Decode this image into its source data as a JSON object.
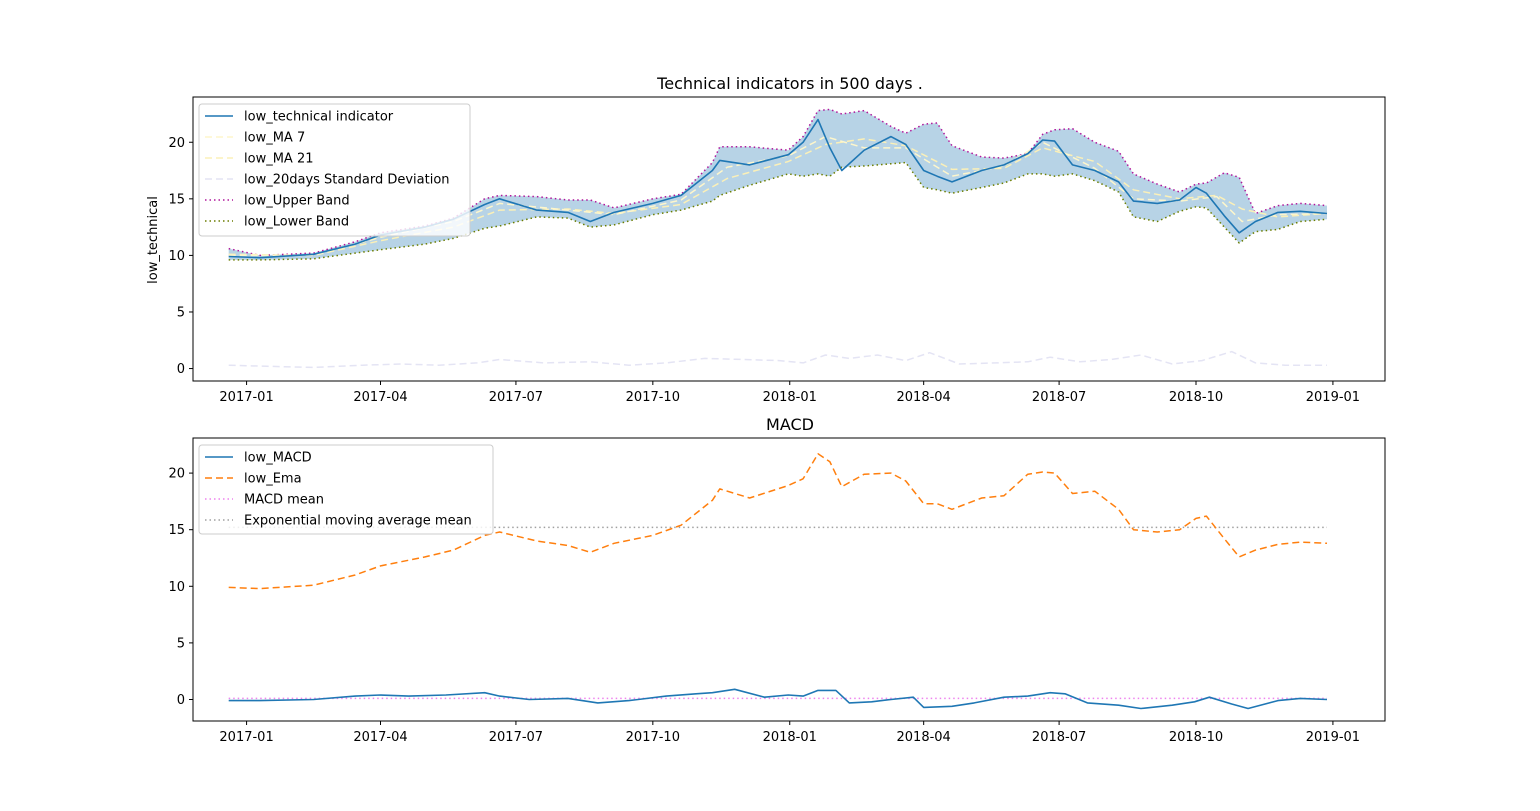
{
  "colors": {
    "indicator": "#1f77b4",
    "ma7": "#fdf6cc",
    "ma21": "#fbf0b8",
    "std": "#e4e4f4",
    "upper": "#b0179b",
    "lower": "#6b7d00",
    "band_fill": "#b7d3e6",
    "ema": "#ff7f0e",
    "macd_mean": "#ee82ee",
    "ema_mean": "#a0a0a0"
  },
  "chart_data": [
    {
      "type": "line",
      "title": "Technical indicators in 500 days .",
      "xlabel": "",
      "ylabel": "low_technical",
      "x_tick_labels": [
        "2017-01",
        "2017-04",
        "2017-07",
        "2017-10",
        "2018-01",
        "2018-04",
        "2018-07",
        "2018-10",
        "2019-01"
      ],
      "x_ticks_dates": [
        "2017-01-01",
        "2017-04-01",
        "2017-07-01",
        "2017-10-01",
        "2018-01-01",
        "2018-04-01",
        "2018-07-01",
        "2018-10-01",
        "2019-01-01"
      ],
      "xlim": [
        "2016-11-26",
        "2019-02-05"
      ],
      "ylim": [
        -1.1,
        24.0
      ],
      "y_ticks": [
        0,
        5,
        10,
        15,
        20
      ],
      "grid": false,
      "legend_position": "upper-left",
      "series": [
        {
          "name": "low_technical indicator",
          "style": "solid",
          "color": "#1f77b4",
          "x": [
            "2016-12-20",
            "2017-01-10",
            "2017-02-15",
            "2017-03-15",
            "2017-04-01",
            "2017-05-01",
            "2017-05-20",
            "2017-06-10",
            "2017-06-20",
            "2017-07-15",
            "2017-08-05",
            "2017-08-20",
            "2017-09-05",
            "2017-10-01",
            "2017-10-20",
            "2017-11-10",
            "2017-11-15",
            "2017-12-05",
            "2017-12-31",
            "2018-01-10",
            "2018-01-20",
            "2018-01-28",
            "2018-02-05",
            "2018-02-20",
            "2018-03-10",
            "2018-03-20",
            "2018-04-01",
            "2018-04-10",
            "2018-04-20",
            "2018-05-10",
            "2018-05-25",
            "2018-06-10",
            "2018-06-20",
            "2018-06-28",
            "2018-07-10",
            "2018-07-25",
            "2018-08-10",
            "2018-08-20",
            "2018-09-05",
            "2018-09-20",
            "2018-10-01",
            "2018-10-08",
            "2018-10-20",
            "2018-10-30",
            "2018-11-10",
            "2018-11-25",
            "2018-12-10",
            "2018-12-28"
          ],
          "y": [
            9.9,
            9.8,
            10.1,
            11.0,
            11.8,
            12.5,
            13.2,
            14.5,
            15.0,
            14.0,
            13.8,
            13.0,
            13.8,
            14.6,
            15.3,
            17.5,
            18.4,
            18.0,
            18.9,
            20.0,
            22.0,
            19.5,
            17.5,
            19.3,
            20.5,
            19.8,
            17.5,
            17.0,
            16.5,
            17.5,
            18.0,
            19.0,
            20.2,
            20.1,
            18.0,
            17.5,
            16.5,
            14.8,
            14.6,
            14.9,
            16.0,
            15.5,
            13.5,
            12.0,
            13.0,
            13.8,
            13.9,
            13.7
          ]
        },
        {
          "name": "low_MA 7",
          "style": "dashed",
          "color": "#fdf6cc",
          "x": [
            "2016-12-20",
            "2017-02-15",
            "2017-04-01",
            "2017-05-20",
            "2017-06-20",
            "2017-08-05",
            "2017-09-05",
            "2017-10-20",
            "2017-11-20",
            "2017-12-31",
            "2018-01-25",
            "2018-02-20",
            "2018-03-20",
            "2018-04-20",
            "2018-05-25",
            "2018-06-20",
            "2018-07-25",
            "2018-08-20",
            "2018-09-20",
            "2018-10-15",
            "2018-11-01",
            "2018-11-25",
            "2018-12-28"
          ],
          "y": [
            10.0,
            10.0,
            11.6,
            13.0,
            14.6,
            14.0,
            13.6,
            14.9,
            17.8,
            18.8,
            20.5,
            19.5,
            19.5,
            17.0,
            17.9,
            20.0,
            17.7,
            15.0,
            14.8,
            15.2,
            13.0,
            13.6,
            13.7
          ]
        },
        {
          "name": "low_MA 21",
          "style": "dashed",
          "color": "#fbf0b8",
          "x": [
            "2016-12-20",
            "2017-02-15",
            "2017-04-01",
            "2017-05-20",
            "2017-06-20",
            "2017-08-05",
            "2017-09-05",
            "2017-10-20",
            "2017-11-20",
            "2017-12-31",
            "2018-01-25",
            "2018-02-20",
            "2018-03-20",
            "2018-04-20",
            "2018-05-25",
            "2018-06-20",
            "2018-07-25",
            "2018-08-20",
            "2018-09-20",
            "2018-10-15",
            "2018-11-01",
            "2018-11-25",
            "2018-12-28"
          ],
          "y": [
            10.1,
            10.0,
            11.3,
            12.5,
            14.0,
            14.1,
            13.7,
            14.5,
            16.8,
            18.3,
            19.8,
            20.3,
            19.7,
            17.6,
            17.7,
            19.5,
            18.3,
            15.8,
            15.0,
            15.3,
            14.1,
            13.4,
            13.7
          ]
        },
        {
          "name": "low_20days Standard Deviation",
          "style": "dashed",
          "color": "#e4e4f4",
          "x": [
            "2016-12-20",
            "2017-01-15",
            "2017-02-15",
            "2017-03-20",
            "2017-04-15",
            "2017-05-10",
            "2017-06-05",
            "2017-06-20",
            "2017-07-20",
            "2017-08-20",
            "2017-09-15",
            "2017-10-10",
            "2017-11-05",
            "2017-12-01",
            "2017-12-25",
            "2018-01-10",
            "2018-01-25",
            "2018-02-10",
            "2018-03-01",
            "2018-03-20",
            "2018-04-05",
            "2018-04-25",
            "2018-05-20",
            "2018-06-10",
            "2018-06-25",
            "2018-07-15",
            "2018-08-05",
            "2018-08-25",
            "2018-09-15",
            "2018-10-05",
            "2018-10-25",
            "2018-11-10",
            "2018-11-30",
            "2018-12-28"
          ],
          "y": [
            0.3,
            0.2,
            0.1,
            0.3,
            0.4,
            0.3,
            0.5,
            0.8,
            0.5,
            0.6,
            0.3,
            0.5,
            0.9,
            0.8,
            0.7,
            0.5,
            1.2,
            0.9,
            1.2,
            0.7,
            1.4,
            0.4,
            0.5,
            0.6,
            1.0,
            0.6,
            0.8,
            1.2,
            0.4,
            0.7,
            1.5,
            0.5,
            0.3,
            0.3
          ]
        },
        {
          "name": "low_Upper Band",
          "style": "dotted",
          "color": "#b0179b",
          "x": [
            "2016-12-20",
            "2017-01-10",
            "2017-02-15",
            "2017-03-15",
            "2017-04-01",
            "2017-05-01",
            "2017-05-20",
            "2017-06-10",
            "2017-06-20",
            "2017-07-15",
            "2017-08-05",
            "2017-08-20",
            "2017-09-05",
            "2017-10-01",
            "2017-10-20",
            "2017-11-10",
            "2017-11-15",
            "2017-12-05",
            "2017-12-31",
            "2018-01-10",
            "2018-01-20",
            "2018-01-28",
            "2018-02-05",
            "2018-02-20",
            "2018-03-10",
            "2018-03-20",
            "2018-04-01",
            "2018-04-10",
            "2018-04-20",
            "2018-05-10",
            "2018-05-25",
            "2018-06-10",
            "2018-06-20",
            "2018-06-28",
            "2018-07-10",
            "2018-07-25",
            "2018-08-10",
            "2018-08-20",
            "2018-09-05",
            "2018-09-20",
            "2018-10-01",
            "2018-10-08",
            "2018-10-20",
            "2018-10-30",
            "2018-11-10",
            "2018-11-25",
            "2018-12-10",
            "2018-12-28"
          ],
          "y": [
            10.6,
            10.0,
            10.2,
            11.2,
            12.0,
            12.6,
            13.3,
            15.0,
            15.3,
            15.2,
            14.9,
            14.9,
            14.2,
            15.0,
            15.4,
            18.2,
            19.6,
            19.6,
            19.3,
            20.5,
            22.8,
            22.9,
            22.5,
            22.8,
            21.4,
            20.8,
            21.6,
            21.7,
            19.7,
            18.7,
            18.6,
            19.0,
            20.7,
            21.1,
            21.2,
            20.0,
            19.2,
            17.2,
            16.3,
            15.6,
            16.3,
            16.4,
            17.3,
            16.9,
            13.7,
            14.4,
            14.6,
            14.4
          ]
        },
        {
          "name": "low_Lower Band",
          "style": "dotted",
          "color": "#6b7d00",
          "x": [
            "2016-12-20",
            "2017-01-10",
            "2017-02-15",
            "2017-03-15",
            "2017-04-01",
            "2017-05-01",
            "2017-05-20",
            "2017-06-10",
            "2017-06-20",
            "2017-07-15",
            "2017-08-05",
            "2017-08-20",
            "2017-09-05",
            "2017-10-01",
            "2017-10-20",
            "2017-11-10",
            "2017-11-15",
            "2017-12-05",
            "2017-12-31",
            "2018-01-10",
            "2018-01-20",
            "2018-01-28",
            "2018-02-05",
            "2018-02-20",
            "2018-03-10",
            "2018-03-20",
            "2018-04-01",
            "2018-04-10",
            "2018-04-20",
            "2018-05-10",
            "2018-05-25",
            "2018-06-10",
            "2018-06-20",
            "2018-06-28",
            "2018-07-10",
            "2018-07-25",
            "2018-08-10",
            "2018-08-20",
            "2018-09-05",
            "2018-09-20",
            "2018-10-01",
            "2018-10-08",
            "2018-10-20",
            "2018-10-30",
            "2018-11-10",
            "2018-11-25",
            "2018-12-10",
            "2018-12-28"
          ],
          "y": [
            9.6,
            9.6,
            9.7,
            10.2,
            10.5,
            11.0,
            11.5,
            12.4,
            12.6,
            13.4,
            13.3,
            12.5,
            12.7,
            13.6,
            14.0,
            14.8,
            15.3,
            16.2,
            17.2,
            17.0,
            17.2,
            17.0,
            17.8,
            17.9,
            18.1,
            18.2,
            16.0,
            15.8,
            15.5,
            16.0,
            16.4,
            17.2,
            17.2,
            17.0,
            17.2,
            16.6,
            15.6,
            13.4,
            13.0,
            13.9,
            14.3,
            14.2,
            12.5,
            11.1,
            12.1,
            12.3,
            13.0,
            13.2
          ]
        }
      ]
    },
    {
      "type": "line",
      "title": "MACD",
      "xlabel": "",
      "ylabel": "",
      "x_tick_labels": [
        "2017-01",
        "2017-04",
        "2017-07",
        "2017-10",
        "2018-01",
        "2018-04",
        "2018-07",
        "2018-10",
        "2019-01"
      ],
      "x_ticks_dates": [
        "2017-01-01",
        "2017-04-01",
        "2017-07-01",
        "2017-10-01",
        "2018-01-01",
        "2018-04-01",
        "2018-07-01",
        "2018-10-01",
        "2019-01-01"
      ],
      "xlim": [
        "2016-11-26",
        "2019-02-05"
      ],
      "ylim": [
        -1.9,
        23.1
      ],
      "y_ticks": [
        0,
        5,
        10,
        15,
        20
      ],
      "grid": false,
      "legend_position": "upper-left",
      "series": [
        {
          "name": "low_MACD",
          "style": "solid",
          "color": "#1f77b4",
          "x": [
            "2016-12-20",
            "2017-01-10",
            "2017-02-15",
            "2017-03-15",
            "2017-04-01",
            "2017-04-20",
            "2017-05-15",
            "2017-06-10",
            "2017-06-20",
            "2017-07-10",
            "2017-08-05",
            "2017-08-25",
            "2017-09-15",
            "2017-10-10",
            "2017-10-30",
            "2017-11-10",
            "2017-11-25",
            "2017-12-15",
            "2017-12-31",
            "2018-01-10",
            "2018-01-20",
            "2018-02-01",
            "2018-02-10",
            "2018-02-25",
            "2018-03-10",
            "2018-03-25",
            "2018-04-01",
            "2018-04-20",
            "2018-05-05",
            "2018-05-25",
            "2018-06-10",
            "2018-06-25",
            "2018-07-05",
            "2018-07-20",
            "2018-08-10",
            "2018-08-25",
            "2018-09-15",
            "2018-09-30",
            "2018-10-10",
            "2018-10-25",
            "2018-11-05",
            "2018-11-25",
            "2018-12-10",
            "2018-12-28"
          ],
          "y": [
            -0.1,
            -0.1,
            0.0,
            0.3,
            0.4,
            0.3,
            0.4,
            0.6,
            0.3,
            0.0,
            0.1,
            -0.3,
            -0.1,
            0.3,
            0.5,
            0.6,
            0.9,
            0.2,
            0.4,
            0.3,
            0.8,
            0.8,
            -0.3,
            -0.2,
            0.0,
            0.2,
            -0.7,
            -0.6,
            -0.3,
            0.2,
            0.3,
            0.6,
            0.5,
            -0.3,
            -0.5,
            -0.8,
            -0.5,
            -0.2,
            0.2,
            -0.4,
            -0.8,
            -0.1,
            0.1,
            0.0
          ]
        },
        {
          "name": "low_Ema",
          "style": "dashed",
          "color": "#ff7f0e",
          "x": [
            "2016-12-20",
            "2017-01-10",
            "2017-02-15",
            "2017-03-15",
            "2017-04-01",
            "2017-05-01",
            "2017-05-20",
            "2017-06-10",
            "2017-06-20",
            "2017-07-15",
            "2017-08-05",
            "2017-08-20",
            "2017-09-05",
            "2017-10-01",
            "2017-10-20",
            "2017-11-10",
            "2017-11-15",
            "2017-12-05",
            "2017-12-31",
            "2018-01-10",
            "2018-01-20",
            "2018-01-28",
            "2018-02-05",
            "2018-02-20",
            "2018-03-10",
            "2018-03-20",
            "2018-04-01",
            "2018-04-10",
            "2018-04-20",
            "2018-05-10",
            "2018-05-25",
            "2018-06-10",
            "2018-06-20",
            "2018-06-28",
            "2018-07-10",
            "2018-07-25",
            "2018-08-10",
            "2018-08-20",
            "2018-09-05",
            "2018-09-20",
            "2018-10-01",
            "2018-10-08",
            "2018-10-20",
            "2018-10-30",
            "2018-11-10",
            "2018-11-25",
            "2018-12-10",
            "2018-12-28"
          ],
          "y": [
            9.9,
            9.8,
            10.1,
            11.0,
            11.8,
            12.6,
            13.2,
            14.5,
            14.8,
            14.0,
            13.6,
            13.0,
            13.8,
            14.5,
            15.4,
            17.6,
            18.6,
            17.8,
            18.9,
            19.5,
            21.7,
            21.0,
            18.8,
            19.9,
            20.0,
            19.3,
            17.3,
            17.3,
            16.8,
            17.8,
            18.0,
            19.9,
            20.1,
            20.0,
            18.2,
            18.4,
            16.8,
            15.0,
            14.8,
            15.0,
            16.0,
            16.2,
            14.2,
            12.6,
            13.2,
            13.7,
            13.9,
            13.8
          ]
        },
        {
          "name": "MACD mean",
          "style": "dotted",
          "color": "#ee82ee",
          "x": [
            "2016-12-20",
            "2018-12-28"
          ],
          "y": [
            0.1,
            0.1
          ]
        },
        {
          "name": "Exponential moving average mean",
          "style": "dotted",
          "color": "#a0a0a0",
          "x": [
            "2016-12-20",
            "2018-12-28"
          ],
          "y": [
            15.2,
            15.2
          ]
        }
      ]
    }
  ]
}
